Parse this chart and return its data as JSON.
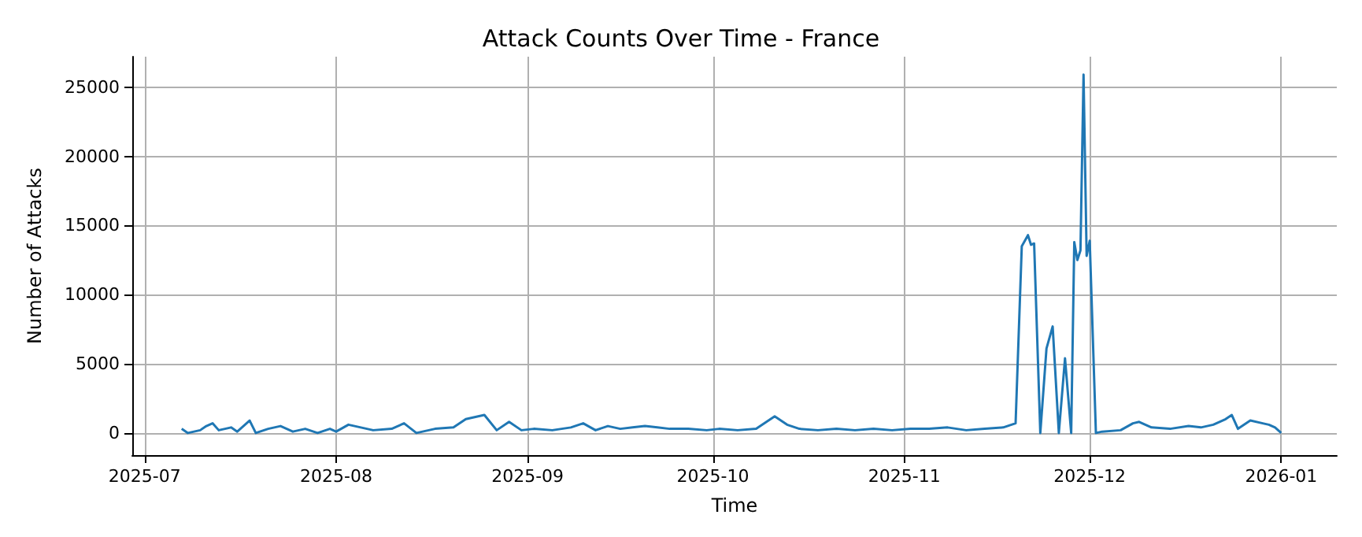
{
  "chart_data": {
    "type": "line",
    "title": "Attack Counts Over Time - France",
    "xlabel": "Time",
    "ylabel": "Number of Attacks",
    "x": [
      "2025-07-07",
      "2025-07-08",
      "2025-07-10",
      "2025-07-11",
      "2025-07-12",
      "2025-07-13",
      "2025-07-15",
      "2025-07-16",
      "2025-07-18",
      "2025-07-19",
      "2025-07-21",
      "2025-07-23",
      "2025-07-25",
      "2025-07-27",
      "2025-07-29",
      "2025-07-31",
      "2025-08-01",
      "2025-08-03",
      "2025-08-05",
      "2025-08-07",
      "2025-08-10",
      "2025-08-12",
      "2025-08-14",
      "2025-08-17",
      "2025-08-20",
      "2025-08-22",
      "2025-08-23",
      "2025-08-25",
      "2025-08-27",
      "2025-08-29",
      "2025-08-31",
      "2025-09-02",
      "2025-09-05",
      "2025-09-08",
      "2025-09-10",
      "2025-09-12",
      "2025-09-14",
      "2025-09-16",
      "2025-09-18",
      "2025-09-20",
      "2025-09-22",
      "2025-09-24",
      "2025-09-27",
      "2025-09-30",
      "2025-10-02",
      "2025-10-05",
      "2025-10-08",
      "2025-10-11",
      "2025-10-13",
      "2025-10-15",
      "2025-10-18",
      "2025-10-21",
      "2025-10-24",
      "2025-10-27",
      "2025-10-30",
      "2025-11-02",
      "2025-11-05",
      "2025-11-08",
      "2025-11-11",
      "2025-11-14",
      "2025-11-17",
      "2025-11-19",
      "2025-11-20",
      "2025-11-21",
      "2025-11-21T12:00",
      "2025-11-22",
      "2025-11-23",
      "2025-11-24",
      "2025-11-25",
      "2025-11-26",
      "2025-11-27",
      "2025-11-28",
      "2025-11-28T12:00",
      "2025-11-29",
      "2025-11-29T12:00",
      "2025-11-30",
      "2025-11-30T12:00",
      "2025-12-01",
      "2025-12-02",
      "2025-12-03",
      "2025-12-06",
      "2025-12-08",
      "2025-12-09",
      "2025-12-11",
      "2025-12-14",
      "2025-12-17",
      "2025-12-19",
      "2025-12-21",
      "2025-12-23",
      "2025-12-24",
      "2025-12-25",
      "2025-12-27",
      "2025-12-29",
      "2025-12-30",
      "2025-12-31",
      "2026-01-01"
    ],
    "series": [
      {
        "color": "#1f77b4",
        "values": [
          300,
          0,
          200,
          500,
          700,
          200,
          400,
          100,
          900,
          0,
          300,
          500,
          100,
          300,
          0,
          300,
          100,
          600,
          400,
          200,
          300,
          700,
          0,
          300,
          400,
          1000,
          1100,
          1300,
          200,
          800,
          200,
          300,
          200,
          400,
          700,
          200,
          500,
          300,
          400,
          500,
          400,
          300,
          300,
          200,
          300,
          200,
          300,
          1200,
          600,
          300,
          200,
          300,
          200,
          300,
          200,
          300,
          300,
          400,
          200,
          300,
          400,
          700,
          13500,
          14300,
          13600,
          13700,
          0,
          6100,
          7700,
          0,
          5400,
          0,
          13800,
          12500,
          13200,
          25900,
          12800,
          13900,
          0,
          100,
          200,
          700,
          800,
          400,
          300,
          500,
          400,
          600,
          1000,
          1300,
          300,
          900,
          700,
          600,
          400,
          0
        ]
      }
    ],
    "xlim": [
      "2025-06-29",
      "2026-01-10"
    ],
    "xticks": [
      {
        "value": "2025-07-01",
        "label": "2025-07"
      },
      {
        "value": "2025-08-01",
        "label": "2025-08"
      },
      {
        "value": "2025-09-01",
        "label": "2025-09"
      },
      {
        "value": "2025-10-01",
        "label": "2025-10"
      },
      {
        "value": "2025-11-01",
        "label": "2025-11"
      },
      {
        "value": "2025-12-01",
        "label": "2025-12"
      },
      {
        "value": "2026-01-01",
        "label": "2026-01"
      }
    ],
    "ylim": [
      -1600,
      27200
    ],
    "yticks": [
      0,
      5000,
      10000,
      15000,
      20000,
      25000
    ],
    "grid": true
  }
}
